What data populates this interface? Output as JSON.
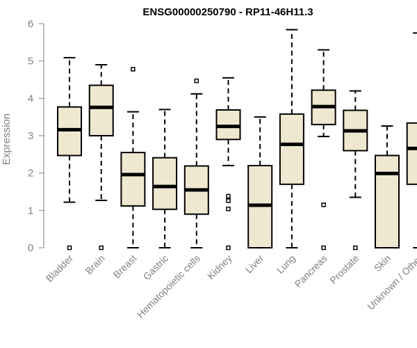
{
  "chart_data": {
    "type": "boxplot",
    "title": "ENSG00000250790 - RP11-46H11.3",
    "xlabel": "",
    "ylabel": "Expression",
    "ylim": [
      0,
      6
    ],
    "yticks": [
      0,
      1,
      2,
      3,
      4,
      5,
      6
    ],
    "grid": false,
    "box_fill": "#efe8d0",
    "box_stroke": "#000000",
    "axis_color": "#808080",
    "categories": [
      "Bladder",
      "Brain",
      "Breast",
      "Gastric",
      "Hematopoietic cells",
      "Kidney",
      "Liver",
      "Lung",
      "Pancreas",
      "Prostate",
      "Skin",
      "Unknown / Other"
    ],
    "boxes": [
      {
        "whisker_low": 1.22,
        "q1": 2.47,
        "median": 3.16,
        "q3": 3.77,
        "whisker_high": 5.09,
        "outliers": [
          0.0
        ]
      },
      {
        "whisker_low": 1.27,
        "q1": 3.0,
        "median": 3.76,
        "q3": 4.35,
        "whisker_high": 4.9,
        "outliers": [
          0.0
        ]
      },
      {
        "whisker_low": 0.0,
        "q1": 1.12,
        "median": 1.96,
        "q3": 2.55,
        "whisker_high": 3.64,
        "outliers": [
          4.78
        ]
      },
      {
        "whisker_low": 0.0,
        "q1": 1.03,
        "median": 1.64,
        "q3": 2.41,
        "whisker_high": 3.7,
        "outliers": []
      },
      {
        "whisker_low": 0.0,
        "q1": 0.9,
        "median": 1.55,
        "q3": 2.19,
        "whisker_high": 4.12,
        "outliers": [
          4.47
        ]
      },
      {
        "whisker_low": 2.2,
        "q1": 2.9,
        "median": 3.25,
        "q3": 3.69,
        "whisker_high": 4.55,
        "outliers": [
          1.38,
          1.26,
          1.04,
          0.0
        ]
      },
      {
        "whisker_low": 0.0,
        "q1": 0.0,
        "median": 1.14,
        "q3": 2.2,
        "whisker_high": 3.5,
        "outliers": []
      },
      {
        "whisker_low": 0.0,
        "q1": 1.7,
        "median": 2.77,
        "q3": 3.58,
        "whisker_high": 5.84,
        "outliers": []
      },
      {
        "whisker_low": 2.98,
        "q1": 3.3,
        "median": 3.78,
        "q3": 4.22,
        "whisker_high": 5.3,
        "outliers": [
          1.15,
          0.0
        ]
      },
      {
        "whisker_low": 1.35,
        "q1": 2.6,
        "median": 3.13,
        "q3": 3.68,
        "whisker_high": 4.2,
        "outliers": [
          0.0
        ]
      },
      {
        "whisker_low": 0.0,
        "q1": 0.0,
        "median": 1.99,
        "q3": 2.47,
        "whisker_high": 3.26,
        "outliers": []
      },
      {
        "whisker_low": 0.0,
        "q1": 1.7,
        "median": 2.66,
        "q3": 3.34,
        "whisker_high": 5.75,
        "outliers": []
      }
    ]
  }
}
